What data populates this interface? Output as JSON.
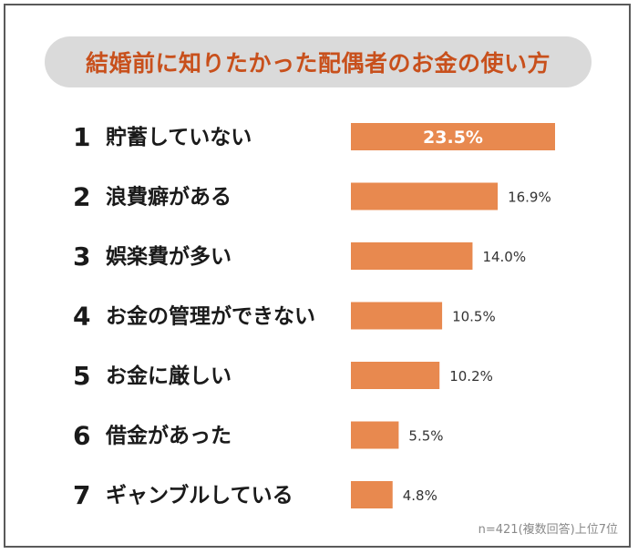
{
  "title": "結婚前に知りたかった配偶者のお金の使い方",
  "note": "n=421(複数回答)上位7位",
  "colors": {
    "bar": "#e8894f",
    "title": "#c8501c",
    "pill": "#dadada"
  },
  "chart_data": {
    "type": "bar",
    "orientation": "horizontal",
    "title": "結婚前に知りたかった配偶者のお金の使い方",
    "xlim": [
      0,
      23.5
    ],
    "ranks": [
      "1",
      "2",
      "3",
      "4",
      "5",
      "6",
      "7"
    ],
    "categories": [
      "貯蓄していない",
      "浪費癖がある",
      "娯楽費が多い",
      "お金の管理ができない",
      "お金に厳しい",
      "借金があった",
      "ギャンブルしている"
    ],
    "values": [
      23.5,
      16.9,
      14.0,
      10.5,
      10.2,
      5.5,
      4.8
    ],
    "labels": [
      "23.5%",
      "16.9%",
      "14.0%",
      "10.5%",
      "10.2%",
      "5.5%",
      "4.8%"
    ],
    "unit": "%"
  }
}
